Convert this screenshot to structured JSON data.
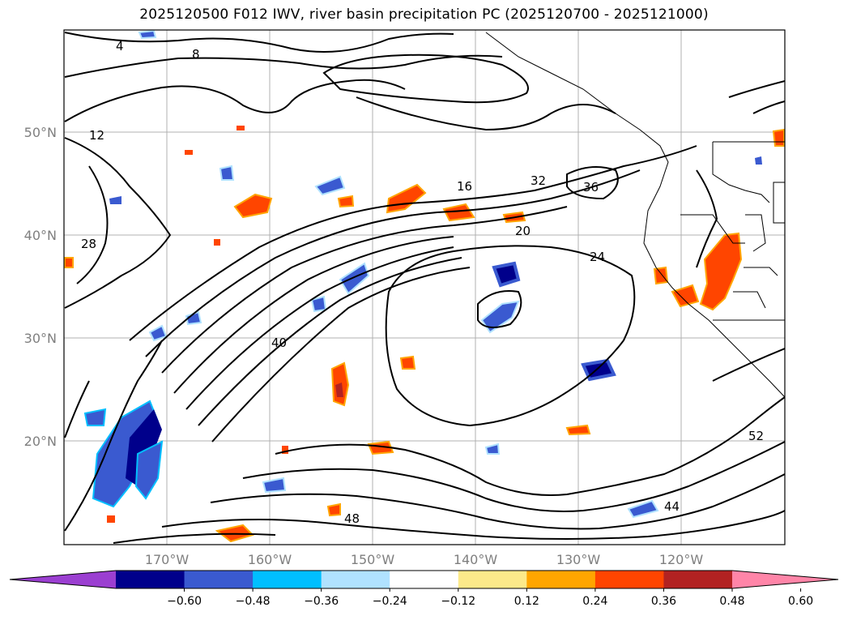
{
  "title": "2025120500 F012 IWV, river basin precipitation PC (2025120700 - 2025121000)",
  "map": {
    "lat_labels": [
      "50°N",
      "40°N",
      "30°N",
      "20°N"
    ],
    "lon_labels": [
      "170°W",
      "160°W",
      "150°W",
      "140°W",
      "130°W",
      "120°W"
    ],
    "extent": {
      "lon_min": -180,
      "lon_max": -110,
      "lat_min": 10,
      "lat_max": 60
    },
    "gridlines": true,
    "contour_variable": "IWV",
    "contour_labels": [
      "4",
      "8",
      "12",
      "16",
      "20",
      "24",
      "28",
      "32",
      "36",
      "40",
      "44",
      "48",
      "52"
    ]
  },
  "colorbar": {
    "ticks": [
      "−0.60",
      "−0.48",
      "−0.36",
      "−0.24",
      "−0.12",
      "0.12",
      "0.24",
      "0.36",
      "0.48",
      "0.60"
    ],
    "colors": [
      "#9b3fd1",
      "#00008b",
      "#3a5ad0",
      "#00bfff",
      "#b0e2ff",
      "#ffffff",
      "#fce98a",
      "#ffa500",
      "#ff4500",
      "#b22222",
      "#ff85a8"
    ],
    "extend": "both"
  }
}
